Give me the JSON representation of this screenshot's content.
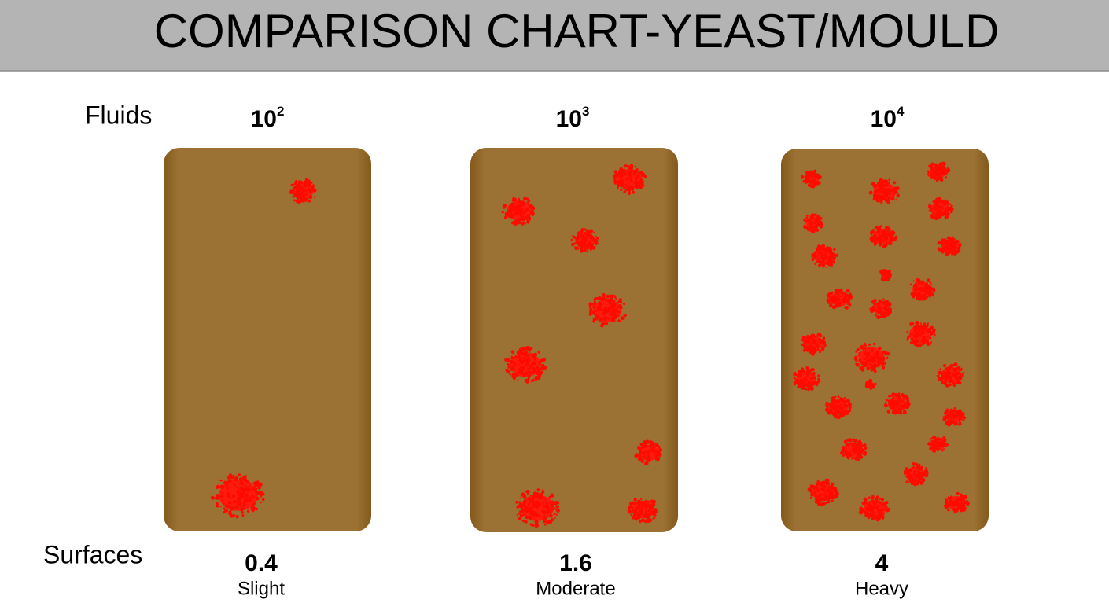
{
  "header": {
    "title": "COMPARISON CHART-YEAST/MOULD"
  },
  "row_labels": {
    "fluids": "Fluids",
    "surfaces": "Surfaces"
  },
  "panels": [
    {
      "fluid": {
        "base": "10",
        "exponent": "2"
      },
      "surface": "0.4",
      "level": "Slight"
    },
    {
      "fluid": {
        "base": "10",
        "exponent": "3"
      },
      "surface": "1.6",
      "level": "Moderate"
    },
    {
      "fluid": {
        "base": "10",
        "exponent": "4"
      },
      "surface": "4",
      "level": "Heavy"
    }
  ]
}
